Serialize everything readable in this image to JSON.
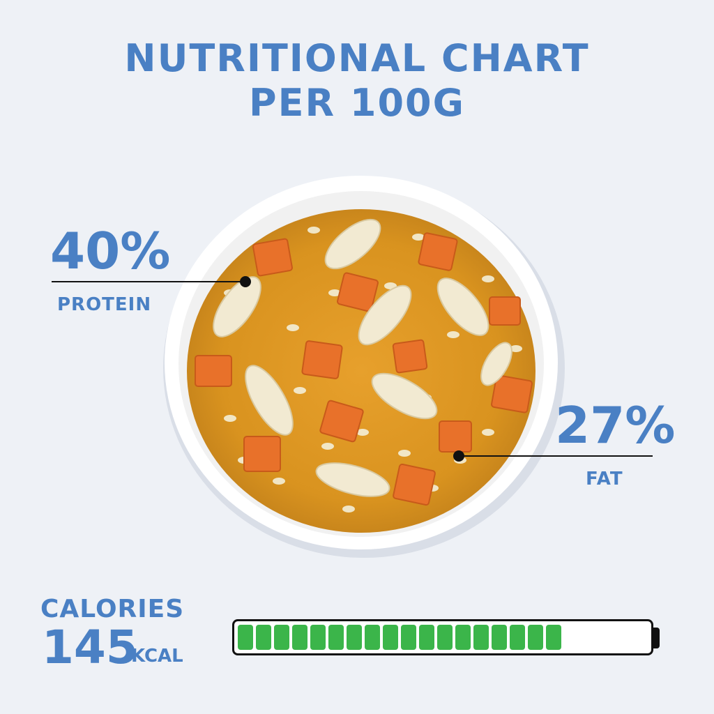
{
  "colors": {
    "accent": "#4a80c4",
    "battery_fill": "#3bb54a"
  },
  "title": {
    "line1": "NUTRITIONAL CHART",
    "line2": "PER 100G"
  },
  "protein": {
    "value": "40%",
    "label": "PROTEIN"
  },
  "fat": {
    "value": "27%",
    "label": "FAT"
  },
  "calories": {
    "label": "CALORIES",
    "value": "145",
    "unit": "KCAL",
    "level": 0.78
  },
  "image_icon": "bowl-of-chicken-rice-soup-icon"
}
